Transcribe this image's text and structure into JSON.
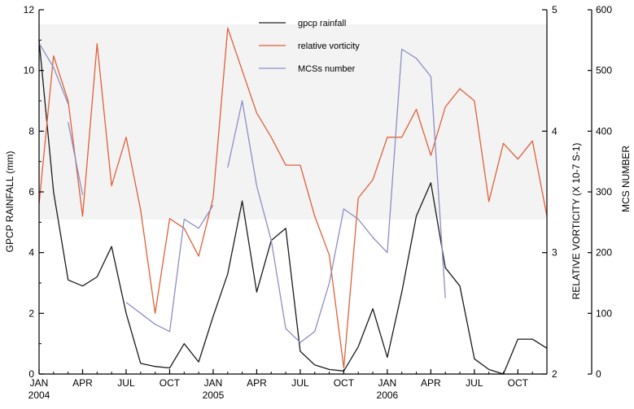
{
  "chart_data": {
    "type": "line",
    "x_tick_labels": [
      "JAN",
      "APR",
      "JUL",
      "OCT",
      "JAN",
      "APR",
      "JUL",
      "OCT",
      "JAN",
      "APR",
      "JUL",
      "OCT"
    ],
    "x_year_labels": [
      "2004",
      "2005",
      "2006"
    ],
    "y_left": {
      "label": "GPCP RAINFALL (mm)",
      "range": [
        0,
        12
      ],
      "ticks": [
        "0",
        "2",
        "4",
        "6",
        "8",
        "10",
        "12"
      ]
    },
    "y_right1": {
      "label": "RELATIVE VORTICITY (X 10-7 S-1)",
      "range": [
        2,
        5
      ],
      "ticks": [
        "2",
        "3",
        "4",
        "5"
      ]
    },
    "y_right2": {
      "label": "MCS NUMBER",
      "range": [
        0,
        600
      ],
      "ticks": [
        "0",
        "100",
        "200",
        "300",
        "400",
        "500",
        "600"
      ]
    },
    "legend_position": "top-center",
    "series": [
      {
        "name": "gpcp rainfall",
        "axis": "left",
        "color": "#1a1a1a",
        "x": [
          "2004-01",
          "2004-02",
          "2004-03",
          "2004-04",
          "2004-05",
          "2004-06",
          "2004-07",
          "2004-08",
          "2004-09",
          "2004-10",
          "2004-11",
          "2004-12",
          "2005-01",
          "2005-02",
          "2005-03",
          "2005-04",
          "2005-05",
          "2005-06",
          "2005-07",
          "2005-08",
          "2005-09",
          "2005-10",
          "2005-11",
          "2005-12",
          "2006-01",
          "2006-02",
          "2006-03",
          "2006-04",
          "2006-05",
          "2006-06",
          "2006-07",
          "2006-08",
          "2006-09",
          "2006-10",
          "2006-11",
          "2006-12"
        ],
        "values": [
          11.0,
          6.0,
          3.1,
          2.9,
          3.2,
          4.2,
          2.0,
          0.35,
          0.25,
          0.2,
          1.0,
          0.4,
          1.9,
          3.3,
          5.7,
          2.7,
          4.4,
          4.8,
          0.75,
          0.3,
          0.15,
          0.1,
          0.9,
          2.15,
          0.55,
          2.7,
          5.2,
          6.3,
          3.5,
          2.9,
          0.5,
          0.15,
          0.0,
          1.15,
          1.15,
          0.85
        ]
      },
      {
        "name": "relative vorticity",
        "axis": "right1",
        "color": "#e0603a",
        "x": [
          "2004-01",
          "2004-02",
          "2004-03",
          "2004-04",
          "2004-05",
          "2004-06",
          "2004-07",
          "2004-08",
          "2004-09",
          "2004-10",
          "2004-11",
          "2004-12",
          "2005-01",
          "2005-02",
          "2005-03",
          "2005-04",
          "2005-05",
          "2005-06",
          "2005-07",
          "2005-08",
          "2005-09",
          "2005-10",
          "2005-11",
          "2005-12",
          "2006-01",
          "2006-02",
          "2006-03",
          "2006-04",
          "2006-05",
          "2006-06",
          "2006-07",
          "2006-08",
          "2006-09",
          "2006-10",
          "2006-11",
          "2006-12"
        ],
        "values": [
          3.4,
          4.62,
          4.25,
          3.3,
          4.72,
          3.55,
          3.95,
          3.35,
          2.5,
          3.28,
          3.2,
          2.97,
          3.45,
          4.85,
          4.5,
          4.15,
          3.95,
          3.72,
          3.72,
          3.3,
          2.98,
          2.05,
          3.45,
          3.6,
          3.95,
          3.95,
          4.18,
          3.8,
          4.2,
          4.35,
          4.25,
          3.42,
          3.9,
          3.77,
          3.92,
          3.3
        ]
      },
      {
        "name": "MCSs number",
        "axis": "right2",
        "color": "#8c8ec6",
        "segments": [
          {
            "x": [
              "2004-01",
              "2004-02",
              "2004-03"
            ],
            "values": [
              545,
              505,
              445
            ]
          },
          {
            "x": [
              "2004-03",
              "2004-04"
            ],
            "values": [
              415,
              295
            ]
          },
          {
            "x": [
              "2004-07",
              "2004-08",
              "2004-09",
              "2004-10",
              "2004-11",
              "2004-12",
              "2005-01"
            ],
            "values": [
              118,
              100,
              82,
              70,
              255,
              240,
              278
            ]
          },
          {
            "x": [
              "2005-02",
              "2005-03",
              "2005-04",
              "2005-05",
              "2005-06",
              "2005-07",
              "2005-08",
              "2005-09",
              "2005-10",
              "2005-11",
              "2005-12",
              "2006-01",
              "2006-02",
              "2006-03",
              "2006-04",
              "2006-05"
            ],
            "values": [
              340,
              450,
              310,
              220,
              75,
              52,
              70,
              150,
              272,
              255,
              225,
              200,
              535,
              520,
              490,
              125
            ]
          }
        ]
      }
    ]
  }
}
